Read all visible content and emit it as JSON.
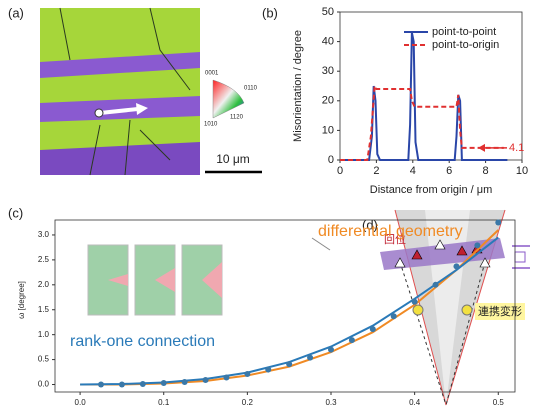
{
  "chart_data": [
    {
      "type": "line",
      "panel_label": "(b)",
      "xlabel": "Distance from origin / μm",
      "ylabel": "Misorientation / degree",
      "xlim": [
        0,
        10
      ],
      "xticks": [
        0,
        2,
        4,
        6,
        8,
        10
      ],
      "ylim": [
        0,
        50
      ],
      "yticks": [
        0,
        10,
        20,
        30,
        40,
        50
      ],
      "legend": "upper right",
      "frame": true,
      "series": [
        {
          "name": "point-to-point",
          "color": "#2a46a8",
          "line_style": "solid",
          "x": [
            0,
            1.6,
            1.75,
            1.85,
            1.95,
            2.05,
            2.2,
            3.75,
            3.85,
            3.95,
            4.05,
            4.15,
            4.3,
            6.3,
            6.4,
            6.5,
            6.6,
            6.7,
            9.2
          ],
          "values": [
            0,
            0,
            8,
            25,
            20,
            2,
            0,
            0,
            12,
            43,
            40,
            6,
            0,
            0,
            8,
            22,
            20,
            0,
            0
          ]
        },
        {
          "name": "point-to-origin",
          "color": "#e03030",
          "line_style": "dashed",
          "x": [
            0,
            1.5,
            1.7,
            1.9,
            2.0,
            3.7,
            3.85,
            3.95,
            4.1,
            4.2,
            6.3,
            6.4,
            6.5,
            6.6,
            6.7,
            9.0
          ],
          "values": [
            0,
            0,
            8,
            25,
            24,
            24,
            24,
            20,
            18,
            18,
            18,
            18,
            22,
            10,
            4.1,
            4.1
          ]
        }
      ],
      "annotations": [
        {
          "label": "4.1",
          "value": 4.1
        }
      ]
    },
    {
      "type": "line",
      "panel_label": "(c)",
      "ylabel": "ω [degree]",
      "xlim": [
        -0.03,
        0.52
      ],
      "xticks": [
        {
          "value": 0,
          "label": "0.0"
        },
        0.1,
        0.2,
        0.3,
        0.4,
        0.5
      ],
      "ylim": [
        -0.15,
        3.3
      ],
      "yticks": [
        {
          "value": 0,
          "label": "0.0"
        },
        0.5,
        {
          "value": 1,
          "label": "1.0"
        },
        1.5,
        {
          "value": 2,
          "label": "2.0"
        },
        2.5,
        {
          "value": 3,
          "label": "3.0"
        }
      ],
      "frame": true,
      "series": [
        {
          "name": "differential geometry",
          "color": "#f08a24",
          "line_style": "solid",
          "x": [
            0,
            0.05,
            0.1,
            0.15,
            0.2,
            0.25,
            0.3,
            0.35,
            0.4,
            0.45,
            0.5
          ],
          "values": [
            0,
            0,
            0.02,
            0.07,
            0.18,
            0.36,
            0.65,
            1.05,
            1.6,
            2.3,
            3.1
          ]
        },
        {
          "name": "rank-one connection",
          "color": "#2a7ab8",
          "line_style": "solid",
          "x": [
            0,
            0.05,
            0.1,
            0.15,
            0.2,
            0.25,
            0.3,
            0.35,
            0.4,
            0.45,
            0.5
          ],
          "values": [
            0,
            0.01,
            0.04,
            0.11,
            0.24,
            0.45,
            0.76,
            1.18,
            1.72,
            2.3,
            2.95
          ]
        },
        {
          "color": "#3a78a8",
          "line_style": "markers",
          "x": [
            0.025,
            0.05,
            0.075,
            0.1,
            0.125,
            0.15,
            0.175,
            0.2,
            0.225,
            0.25,
            0.275,
            0.3,
            0.325,
            0.35,
            0.375,
            0.4,
            0.425,
            0.45,
            0.475,
            0.5
          ],
          "values": [
            0.0,
            0.0,
            0.01,
            0.03,
            0.05,
            0.09,
            0.14,
            0.21,
            0.3,
            0.41,
            0.54,
            0.7,
            0.89,
            1.11,
            1.37,
            1.66,
            2.0,
            2.37,
            2.79,
            3.25
          ]
        }
      ]
    }
  ],
  "panel_a": {
    "label": "(a)",
    "ipf_labels": [
      "0001",
      "0110",
      "1010",
      "1120"
    ],
    "scale_bar": "10 μm"
  },
  "panel_d": {
    "label": "(d)",
    "labels": [
      "回位",
      "連携変形"
    ]
  }
}
